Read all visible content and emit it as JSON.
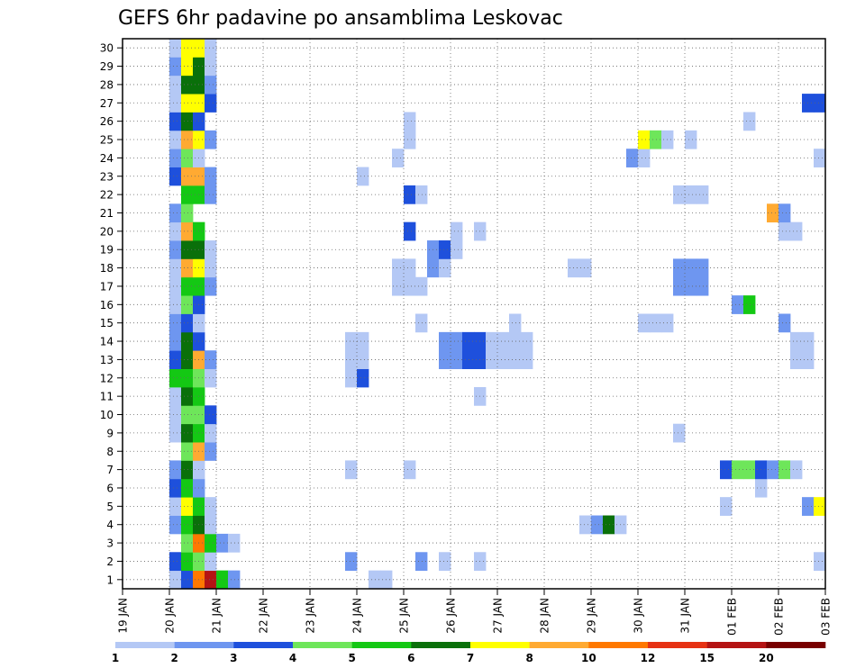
{
  "chart_data": {
    "type": "heatmap",
    "title": "GEFS 6hr padavine po ansamblima Leskovac",
    "xlabel": "",
    "ylabel": "",
    "x_tick_labels": [
      "19 JAN",
      "20 JAN",
      "21 JAN",
      "22 JAN",
      "23 JAN",
      "24 JAN",
      "25 JAN",
      "26 JAN",
      "27 JAN",
      "28 JAN",
      "29 JAN",
      "30 JAN",
      "31 JAN",
      "01 FEB",
      "02 FEB",
      "03 FEB"
    ],
    "xlim": [
      0,
      60
    ],
    "x_unit": "6-hour steps from 19 JAN 00Z",
    "y_tick_labels": [
      "1",
      "2",
      "3",
      "4",
      "5",
      "6",
      "7",
      "8",
      "9",
      "10",
      "11",
      "12",
      "13",
      "14",
      "15",
      "16",
      "17",
      "18",
      "19",
      "20",
      "21",
      "22",
      "23",
      "24",
      "25",
      "26",
      "27",
      "28",
      "29",
      "30"
    ],
    "ylim": [
      0.5,
      30.5
    ],
    "grid": true,
    "legend": {
      "placement": "bottom",
      "labels": [
        "1",
        "2",
        "3",
        "4",
        "5",
        "6",
        "7",
        "8",
        "10",
        "12",
        "15",
        "20"
      ],
      "colors": [
        "#b4c8f5",
        "#6e96f0",
        "#1e50dc",
        "#6ee65a",
        "#14c814",
        "#0a700a",
        "#ffff00",
        "#ffaa32",
        "#ff7800",
        "#e63214",
        "#b41414",
        "#780000"
      ]
    },
    "bin_colors": [
      "#b4c8f5",
      "#6e96f0",
      "#1e50dc",
      "#6ee65a",
      "#14c814",
      "#0a700a",
      "#ffff00",
      "#ffaa32",
      "#ff7800",
      "#e63214",
      "#b41414",
      "#780000"
    ],
    "cells_note": "each row: member, then [time_step, color_bin_index] pairs",
    "cells": [
      [
        1,
        [
          [
            4,
            0
          ],
          [
            5,
            2
          ],
          [
            6,
            8
          ],
          [
            7,
            10
          ],
          [
            8,
            4
          ],
          [
            9,
            1
          ],
          [
            21,
            0
          ],
          [
            22,
            0
          ]
        ]
      ],
      [
        2,
        [
          [
            4,
            2
          ],
          [
            5,
            4
          ],
          [
            6,
            3
          ],
          [
            7,
            0
          ],
          [
            19,
            1
          ],
          [
            25,
            1
          ],
          [
            27,
            0
          ],
          [
            30,
            0
          ],
          [
            59,
            0
          ]
        ]
      ],
      [
        3,
        [
          [
            5,
            3
          ],
          [
            6,
            8
          ],
          [
            7,
            4
          ],
          [
            8,
            1
          ],
          [
            9,
            0
          ]
        ]
      ],
      [
        4,
        [
          [
            4,
            1
          ],
          [
            5,
            4
          ],
          [
            6,
            5
          ],
          [
            7,
            0
          ],
          [
            39,
            0
          ],
          [
            40,
            1
          ],
          [
            41,
            5
          ],
          [
            42,
            0
          ]
        ]
      ],
      [
        5,
        [
          [
            4,
            0
          ],
          [
            5,
            6
          ],
          [
            6,
            4
          ],
          [
            7,
            0
          ],
          [
            51,
            0
          ],
          [
            58,
            1
          ],
          [
            59,
            6
          ]
        ]
      ],
      [
        6,
        [
          [
            4,
            2
          ],
          [
            5,
            4
          ],
          [
            6,
            1
          ],
          [
            54,
            0
          ]
        ]
      ],
      [
        7,
        [
          [
            4,
            1
          ],
          [
            5,
            5
          ],
          [
            6,
            0
          ],
          [
            19,
            0
          ],
          [
            24,
            0
          ],
          [
            51,
            2
          ],
          [
            52,
            3
          ],
          [
            53,
            3
          ],
          [
            54,
            2
          ],
          [
            55,
            1
          ],
          [
            56,
            3
          ],
          [
            57,
            0
          ]
        ]
      ],
      [
        8,
        [
          [
            5,
            3
          ],
          [
            6,
            7
          ],
          [
            7,
            1
          ]
        ]
      ],
      [
        9,
        [
          [
            4,
            0
          ],
          [
            5,
            5
          ],
          [
            6,
            4
          ],
          [
            7,
            0
          ],
          [
            47,
            0
          ]
        ]
      ],
      [
        10,
        [
          [
            4,
            0
          ],
          [
            5,
            3
          ],
          [
            6,
            3
          ],
          [
            7,
            2
          ]
        ]
      ],
      [
        11,
        [
          [
            4,
            0
          ],
          [
            5,
            5
          ],
          [
            6,
            4
          ],
          [
            30,
            0
          ]
        ]
      ],
      [
        12,
        [
          [
            4,
            4
          ],
          [
            5,
            4
          ],
          [
            6,
            3
          ],
          [
            7,
            0
          ],
          [
            19,
            0
          ],
          [
            20,
            2
          ]
        ]
      ],
      [
        13,
        [
          [
            4,
            2
          ],
          [
            5,
            5
          ],
          [
            6,
            7
          ],
          [
            7,
            1
          ],
          [
            19,
            0
          ],
          [
            20,
            0
          ],
          [
            27,
            1
          ],
          [
            28,
            1
          ],
          [
            29,
            2
          ],
          [
            30,
            2
          ],
          [
            31,
            0
          ],
          [
            32,
            0
          ],
          [
            33,
            0
          ],
          [
            34,
            0
          ],
          [
            57,
            0
          ],
          [
            58,
            0
          ]
        ]
      ],
      [
        14,
        [
          [
            4,
            1
          ],
          [
            5,
            5
          ],
          [
            6,
            2
          ],
          [
            19,
            0
          ],
          [
            20,
            0
          ],
          [
            27,
            1
          ],
          [
            28,
            1
          ],
          [
            29,
            2
          ],
          [
            30,
            2
          ],
          [
            31,
            0
          ],
          [
            32,
            0
          ],
          [
            33,
            0
          ],
          [
            34,
            0
          ],
          [
            57,
            0
          ],
          [
            58,
            0
          ]
        ]
      ],
      [
        15,
        [
          [
            4,
            1
          ],
          [
            5,
            2
          ],
          [
            6,
            0
          ],
          [
            25,
            0
          ],
          [
            33,
            0
          ],
          [
            44,
            0
          ],
          [
            45,
            0
          ],
          [
            46,
            0
          ],
          [
            56,
            1
          ]
        ]
      ],
      [
        16,
        [
          [
            4,
            0
          ],
          [
            5,
            3
          ],
          [
            6,
            2
          ],
          [
            52,
            1
          ],
          [
            53,
            4
          ]
        ]
      ],
      [
        17,
        [
          [
            4,
            0
          ],
          [
            5,
            4
          ],
          [
            6,
            4
          ],
          [
            7,
            1
          ],
          [
            23,
            0
          ],
          [
            24,
            0
          ],
          [
            25,
            0
          ],
          [
            47,
            1
          ],
          [
            48,
            1
          ],
          [
            49,
            1
          ]
        ]
      ],
      [
        18,
        [
          [
            4,
            0
          ],
          [
            5,
            7
          ],
          [
            6,
            6
          ],
          [
            7,
            0
          ],
          [
            23,
            0
          ],
          [
            24,
            0
          ],
          [
            26,
            1
          ],
          [
            27,
            0
          ],
          [
            38,
            0
          ],
          [
            39,
            0
          ],
          [
            47,
            1
          ],
          [
            48,
            1
          ],
          [
            49,
            1
          ]
        ]
      ],
      [
        19,
        [
          [
            4,
            1
          ],
          [
            5,
            5
          ],
          [
            6,
            5
          ],
          [
            7,
            0
          ],
          [
            26,
            1
          ],
          [
            27,
            2
          ],
          [
            28,
            0
          ]
        ]
      ],
      [
        20,
        [
          [
            4,
            0
          ],
          [
            5,
            7
          ],
          [
            6,
            4
          ],
          [
            24,
            2
          ],
          [
            28,
            0
          ],
          [
            30,
            0
          ],
          [
            56,
            0
          ],
          [
            57,
            0
          ]
        ]
      ],
      [
        21,
        [
          [
            4,
            1
          ],
          [
            5,
            3
          ],
          [
            55,
            7
          ],
          [
            56,
            1
          ]
        ]
      ],
      [
        22,
        [
          [
            5,
            4
          ],
          [
            6,
            4
          ],
          [
            7,
            1
          ],
          [
            24,
            2
          ],
          [
            25,
            0
          ],
          [
            47,
            0
          ],
          [
            48,
            0
          ],
          [
            49,
            0
          ]
        ]
      ],
      [
        23,
        [
          [
            4,
            2
          ],
          [
            5,
            7
          ],
          [
            6,
            7
          ],
          [
            7,
            1
          ],
          [
            20,
            0
          ]
        ]
      ],
      [
        24,
        [
          [
            4,
            1
          ],
          [
            5,
            3
          ],
          [
            6,
            0
          ],
          [
            23,
            0
          ],
          [
            43,
            1
          ],
          [
            44,
            0
          ],
          [
            59,
            0
          ]
        ]
      ],
      [
        25,
        [
          [
            4,
            0
          ],
          [
            5,
            7
          ],
          [
            6,
            6
          ],
          [
            7,
            1
          ],
          [
            24,
            0
          ],
          [
            44,
            6
          ],
          [
            45,
            3
          ],
          [
            46,
            0
          ],
          [
            48,
            0
          ]
        ]
      ],
      [
        26,
        [
          [
            4,
            2
          ],
          [
            5,
            5
          ],
          [
            6,
            2
          ],
          [
            24,
            0
          ],
          [
            53,
            0
          ]
        ]
      ],
      [
        27,
        [
          [
            4,
            0
          ],
          [
            5,
            6
          ],
          [
            6,
            6
          ],
          [
            7,
            2
          ],
          [
            58,
            2
          ],
          [
            59,
            2
          ]
        ]
      ],
      [
        28,
        [
          [
            4,
            0
          ],
          [
            5,
            5
          ],
          [
            6,
            5
          ],
          [
            7,
            1
          ]
        ]
      ],
      [
        29,
        [
          [
            4,
            1
          ],
          [
            5,
            6
          ],
          [
            6,
            5
          ],
          [
            7,
            0
          ]
        ]
      ],
      [
        30,
        [
          [
            4,
            0
          ],
          [
            5,
            6
          ],
          [
            6,
            6
          ],
          [
            7,
            0
          ]
        ]
      ]
    ]
  }
}
